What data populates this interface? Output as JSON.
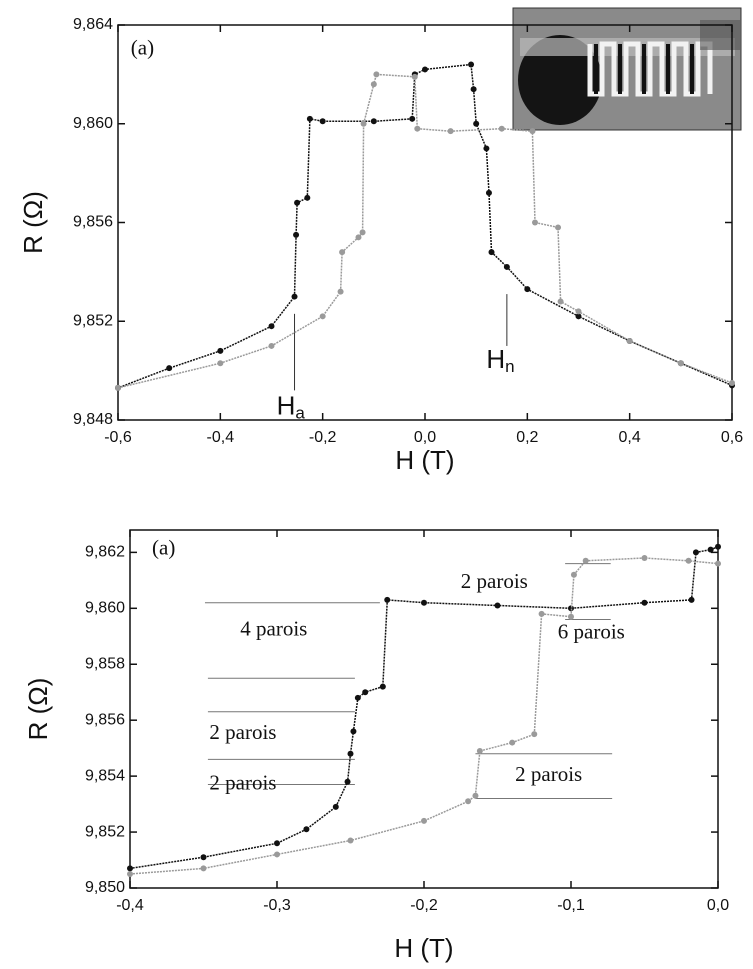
{
  "chart_data": [
    {
      "type": "line",
      "x_label": "H (T)",
      "y_label": "R (Ω)",
      "xlim": [
        -0.6,
        0.6
      ],
      "ylim": [
        9.848,
        9.864
      ],
      "xticks": [
        {
          "value": -0.6,
          "label": "-0,6"
        },
        {
          "value": -0.4,
          "label": "-0,4"
        },
        {
          "value": -0.2,
          "label": "-0,2"
        },
        {
          "value": 0,
          "label": "0,0"
        },
        {
          "value": 0.2,
          "label": "0,2"
        },
        {
          "value": 0.4,
          "label": "0,4"
        },
        {
          "value": 0.6,
          "label": "0,6"
        }
      ],
      "yticks": [
        {
          "value": 9.848,
          "label": "9,848"
        },
        {
          "value": 9.852,
          "label": "9,852"
        },
        {
          "value": 9.856,
          "label": "9,856"
        },
        {
          "value": 9.86,
          "label": "9,860"
        },
        {
          "value": 9.864,
          "label": "9,864"
        }
      ],
      "series": [
        {
          "color": "#111111",
          "x": [
            0.6,
            0.5,
            0.4,
            0.3,
            0.2,
            0.16,
            0.13,
            0.125,
            0.12,
            0.1,
            0.095,
            0.09,
            0.0,
            -0.02,
            -0.025,
            -0.1,
            -0.2,
            -0.225,
            -0.23,
            -0.25,
            -0.252,
            -0.255,
            -0.3,
            -0.4,
            -0.5,
            -0.6
          ],
          "values": [
            9.8494,
            9.8503,
            9.8512,
            9.8522,
            9.8533,
            9.8542,
            9.8548,
            9.8572,
            9.859,
            9.86,
            9.8614,
            9.8624,
            9.8622,
            9.862,
            9.8602,
            9.8601,
            9.8601,
            9.8602,
            9.857,
            9.8568,
            9.8555,
            9.853,
            9.8518,
            9.8508,
            9.8501,
            9.8493
          ]
        },
        {
          "color": "#9a9a9a",
          "x": [
            -0.6,
            -0.4,
            -0.3,
            -0.2,
            -0.165,
            -0.162,
            -0.13,
            -0.122,
            -0.12,
            -0.1,
            -0.095,
            -0.02,
            -0.015,
            0.05,
            0.15,
            0.21,
            0.215,
            0.26,
            0.265,
            0.3,
            0.4,
            0.5,
            0.6
          ],
          "values": [
            9.8493,
            9.8503,
            9.851,
            9.8522,
            9.8532,
            9.8548,
            9.8554,
            9.8556,
            9.86,
            9.8616,
            9.862,
            9.8619,
            9.8598,
            9.8597,
            9.8598,
            9.8597,
            9.856,
            9.8558,
            9.8528,
            9.8524,
            9.8512,
            9.8503,
            9.8495
          ]
        }
      ],
      "markers": [
        {
          "x": -0.255,
          "y": [
            9.8492,
            9.8523
          ]
        },
        {
          "x": 0.16,
          "y": [
            9.851,
            9.8531
          ]
        }
      ],
      "annotations": [
        {
          "text": "(a)",
          "x": -0.575,
          "y": 9.863
        },
        {
          "text": "H",
          "subscript": "a",
          "x": -0.29,
          "y": 9.8485
        },
        {
          "text": "H",
          "subscript": "n",
          "x": 0.12,
          "y": 9.8504
        }
      ]
    },
    {
      "type": "line",
      "x_label": "H (T)",
      "y_label": "R (Ω)",
      "xlim": [
        -0.4,
        0.0
      ],
      "ylim": [
        9.85,
        9.8628
      ],
      "xticks": [
        {
          "value": -0.4,
          "label": "-0,4"
        },
        {
          "value": -0.3,
          "label": "-0,3"
        },
        {
          "value": -0.2,
          "label": "-0,2"
        },
        {
          "value": -0.1,
          "label": "-0,1"
        },
        {
          "value": 0,
          "label": "0,0"
        }
      ],
      "yticks": [
        {
          "value": 9.85,
          "label": "9,850"
        },
        {
          "value": 9.852,
          "label": "9,852"
        },
        {
          "value": 9.854,
          "label": "9,854"
        },
        {
          "value": 9.856,
          "label": "9,856"
        },
        {
          "value": 9.858,
          "label": "9,858"
        },
        {
          "value": 9.86,
          "label": "9,860"
        },
        {
          "value": 9.862,
          "label": "9,862"
        }
      ],
      "series": [
        {
          "color": "#111111",
          "x": [
            0.0,
            -0.005,
            -0.015,
            -0.018,
            -0.05,
            -0.1,
            -0.15,
            -0.2,
            -0.225,
            -0.228,
            -0.24,
            -0.245,
            -0.248,
            -0.25,
            -0.252,
            -0.26,
            -0.28,
            -0.3,
            -0.35,
            -0.4
          ],
          "values": [
            9.8622,
            9.8621,
            9.862,
            9.8603,
            9.8602,
            9.86,
            9.8601,
            9.8602,
            9.8603,
            9.8572,
            9.857,
            9.8568,
            9.8556,
            9.8548,
            9.8538,
            9.8529,
            9.8521,
            9.8516,
            9.8511,
            9.8507
          ]
        },
        {
          "color": "#9a9a9a",
          "x": [
            -0.4,
            -0.35,
            -0.3,
            -0.25,
            -0.2,
            -0.17,
            -0.165,
            -0.162,
            -0.14,
            -0.125,
            -0.12,
            -0.1,
            -0.098,
            -0.09,
            -0.05,
            -0.02,
            0.0
          ],
          "values": [
            9.8505,
            9.8507,
            9.8512,
            9.8517,
            9.8524,
            9.8531,
            9.8533,
            9.8549,
            9.8552,
            9.8555,
            9.8598,
            9.8597,
            9.8612,
            9.8617,
            9.8618,
            9.8617,
            9.8616
          ]
        }
      ],
      "reference_lines": [
        {
          "y": 9.8602,
          "x": [
            -0.349,
            -0.23
          ]
        },
        {
          "y": 9.8575,
          "x": [
            -0.347,
            -0.247
          ]
        },
        {
          "y": 9.8563,
          "x": [
            -0.347,
            -0.247
          ]
        },
        {
          "y": 9.8546,
          "x": [
            -0.347,
            -0.247
          ]
        },
        {
          "y": 9.8537,
          "x": [
            -0.347,
            -0.247
          ]
        },
        {
          "y": 9.8548,
          "x": [
            -0.165,
            -0.072
          ]
        },
        {
          "y": 9.8532,
          "x": [
            -0.165,
            -0.072
          ]
        },
        {
          "y": 9.8616,
          "x": [
            -0.104,
            -0.073
          ]
        },
        {
          "y": 9.8596,
          "x": [
            -0.104,
            -0.073
          ]
        }
      ],
      "annotations": [
        {
          "text": "(a)",
          "x": -0.385,
          "y": 9.8621
        },
        {
          "text": "2 parois",
          "x": -0.175,
          "y": 9.8609
        },
        {
          "text": "4 parois",
          "x": -0.325,
          "y": 9.8592
        },
        {
          "text": "6 parois",
          "x": -0.109,
          "y": 9.8591
        },
        {
          "text": "2 parois",
          "x": -0.346,
          "y": 9.8555
        },
        {
          "text": "2 parois",
          "x": -0.346,
          "y": 9.8537
        },
        {
          "text": "2 parois",
          "x": -0.138,
          "y": 9.854
        }
      ]
    }
  ]
}
